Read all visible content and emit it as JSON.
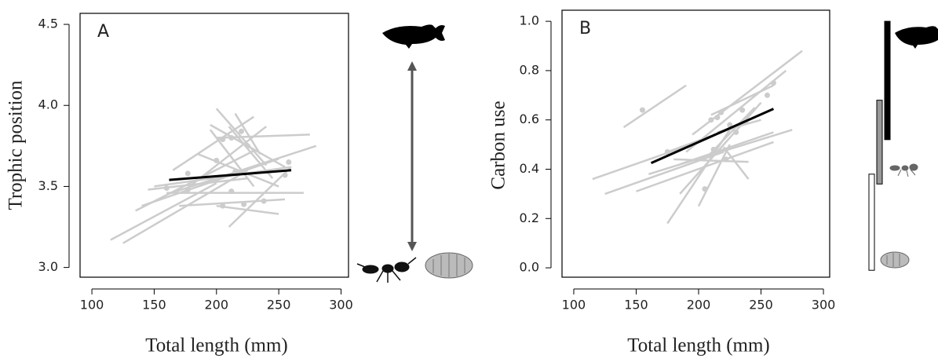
{
  "chart_data": [
    {
      "type": "line",
      "panel_label": "A",
      "xlabel": "Total length (mm)",
      "ylabel": "Trophic position",
      "xlim": [
        90.5,
        306
      ],
      "ylim": [
        2.94,
        4.568
      ],
      "xticks": [
        100,
        150,
        200,
        250,
        300
      ],
      "yticks": [
        {
          "value": 3.0,
          "label": "3.0"
        },
        3.5,
        {
          "value": 4.0,
          "label": "4.0"
        },
        4.5
      ],
      "series": [
        {
          "color": "#cccccc",
          "x": [
            115,
            200
          ],
          "values": [
            3.17,
            3.52
          ]
        },
        {
          "color": "#cccccc",
          "x": [
            125,
            225
          ],
          "values": [
            3.15,
            3.6
          ]
        },
        {
          "color": "#cccccc",
          "x": [
            140,
            250
          ],
          "values": [
            3.38,
            3.67
          ]
        },
        {
          "color": "#cccccc",
          "x": [
            145,
            225
          ],
          "values": [
            3.48,
            3.55
          ]
        },
        {
          "color": "#cccccc",
          "x": [
            135,
            230
          ],
          "values": [
            3.35,
            3.72
          ]
        },
        {
          "color": "#cccccc",
          "x": [
            150,
            260
          ],
          "values": [
            3.5,
            3.62
          ]
        },
        {
          "color": "#cccccc",
          "x": [
            160,
            280
          ],
          "values": [
            3.45,
            3.75
          ]
        },
        {
          "color": "#cccccc",
          "x": [
            165,
            230
          ],
          "values": [
            3.6,
            3.93
          ]
        },
        {
          "color": "#cccccc",
          "x": [
            175,
            240
          ],
          "values": [
            3.48,
            3.87
          ]
        },
        {
          "color": "#cccccc",
          "x": [
            195,
            255
          ],
          "values": [
            3.88,
            3.62
          ]
        },
        {
          "color": "#cccccc",
          "x": [
            185,
            250
          ],
          "values": [
            3.7,
            3.5
          ]
        },
        {
          "color": "#cccccc",
          "x": [
            200,
            240
          ],
          "values": [
            3.98,
            3.63
          ]
        },
        {
          "color": "#cccccc",
          "x": [
            210,
            245
          ],
          "values": [
            3.87,
            3.55
          ]
        },
        {
          "color": "#cccccc",
          "x": [
            200,
            275
          ],
          "values": [
            3.8,
            3.82
          ]
        },
        {
          "color": "#cccccc",
          "x": [
            160,
            270
          ],
          "values": [
            3.46,
            3.46
          ]
        },
        {
          "color": "#cccccc",
          "x": [
            170,
            255
          ],
          "values": [
            3.38,
            3.42
          ]
        },
        {
          "color": "#cccccc",
          "x": [
            200,
            250
          ],
          "values": [
            3.38,
            3.33
          ]
        },
        {
          "color": "#cccccc",
          "x": [
            210,
            260
          ],
          "values": [
            3.25,
            3.62
          ]
        },
        {
          "color": "#cccccc",
          "x": [
            195,
            230
          ],
          "values": [
            3.85,
            3.5
          ]
        },
        {
          "color": "#cccccc",
          "x": [
            215,
            235
          ],
          "values": [
            3.95,
            3.7
          ]
        }
      ],
      "points": {
        "color": "#cccccc",
        "x": [
          160,
          177,
          177,
          200,
          205,
          205,
          212,
          212,
          215,
          220,
          222,
          225,
          238,
          255,
          258
        ],
        "values": [
          3.49,
          3.58,
          3.48,
          3.66,
          3.38,
          3.79,
          3.47,
          3.8,
          3.59,
          3.84,
          3.39,
          3.75,
          3.41,
          3.57,
          3.65
        ]
      },
      "trend": {
        "color": "#000000",
        "x": [
          162,
          260
        ],
        "values": [
          3.54,
          3.6
        ]
      }
    },
    {
      "type": "line",
      "panel_label": "B",
      "xlabel": "Total length (mm)",
      "ylabel": "Carbon use",
      "xlim": [
        90.6,
        305
      ],
      "ylim": [
        -0.038,
        1.045
      ],
      "xticks": [
        100,
        150,
        200,
        250,
        300
      ],
      "yticks": [
        {
          "value": 0,
          "label": "0.0"
        },
        0.2,
        0.4,
        0.6,
        0.8,
        {
          "value": 1,
          "label": "1.0"
        }
      ],
      "series": [
        {
          "color": "#cccccc",
          "x": [
            115,
            200
          ],
          "values": [
            0.36,
            0.51
          ]
        },
        {
          "color": "#cccccc",
          "x": [
            125,
            220
          ],
          "values": [
            0.3,
            0.47
          ]
        },
        {
          "color": "#cccccc",
          "x": [
            140,
            190
          ],
          "values": [
            0.57,
            0.74
          ]
        },
        {
          "color": "#cccccc",
          "x": [
            150,
            260
          ],
          "values": [
            0.31,
            0.51
          ]
        },
        {
          "color": "#cccccc",
          "x": [
            160,
            275
          ],
          "values": [
            0.38,
            0.56
          ]
        },
        {
          "color": "#cccccc",
          "x": [
            175,
            225
          ],
          "values": [
            0.18,
            0.56
          ]
        },
        {
          "color": "#cccccc",
          "x": [
            180,
            240
          ],
          "values": [
            0.44,
            0.43
          ]
        },
        {
          "color": "#cccccc",
          "x": [
            185,
            250
          ],
          "values": [
            0.3,
            0.67
          ]
        },
        {
          "color": "#cccccc",
          "x": [
            190,
            270
          ],
          "values": [
            0.47,
            0.8
          ]
        },
        {
          "color": "#cccccc",
          "x": [
            185,
            260
          ],
          "values": [
            0.42,
            0.55
          ]
        },
        {
          "color": "#cccccc",
          "x": [
            195,
            283
          ],
          "values": [
            0.54,
            0.88
          ]
        },
        {
          "color": "#cccccc",
          "x": [
            200,
            225
          ],
          "values": [
            0.25,
            0.5
          ]
        },
        {
          "color": "#cccccc",
          "x": [
            205,
            245
          ],
          "values": [
            0.44,
            0.65
          ]
        },
        {
          "color": "#cccccc",
          "x": [
            210,
            260
          ],
          "values": [
            0.62,
            0.74
          ]
        },
        {
          "color": "#cccccc",
          "x": [
            215,
            250
          ],
          "values": [
            0.55,
            0.6
          ]
        },
        {
          "color": "#cccccc",
          "x": [
            220,
            240
          ],
          "values": [
            0.49,
            0.36
          ]
        },
        {
          "color": "#cccccc",
          "x": [
            175,
            240
          ],
          "values": [
            0.47,
            0.59
          ]
        }
      ],
      "points": {
        "color": "#cccccc",
        "x": [
          155,
          175,
          205,
          210,
          212,
          215,
          218,
          222,
          225,
          230,
          235,
          255,
          260
        ],
        "values": [
          0.64,
          0.47,
          0.32,
          0.6,
          0.48,
          0.61,
          0.63,
          0.44,
          0.58,
          0.55,
          0.64,
          0.7,
          0.75
        ]
      },
      "trend": {
        "color": "#000000",
        "x": [
          162,
          260
        ],
        "values": [
          0.425,
          0.645
        ]
      },
      "source_ranges": [
        {
          "color": "#000000",
          "range": [
            0.52,
            1.0
          ]
        },
        {
          "color": "#999999",
          "range": [
            0.34,
            0.68
          ]
        },
        {
          "color": "#ffffff",
          "range": [
            -0.01,
            0.38
          ]
        }
      ]
    }
  ]
}
